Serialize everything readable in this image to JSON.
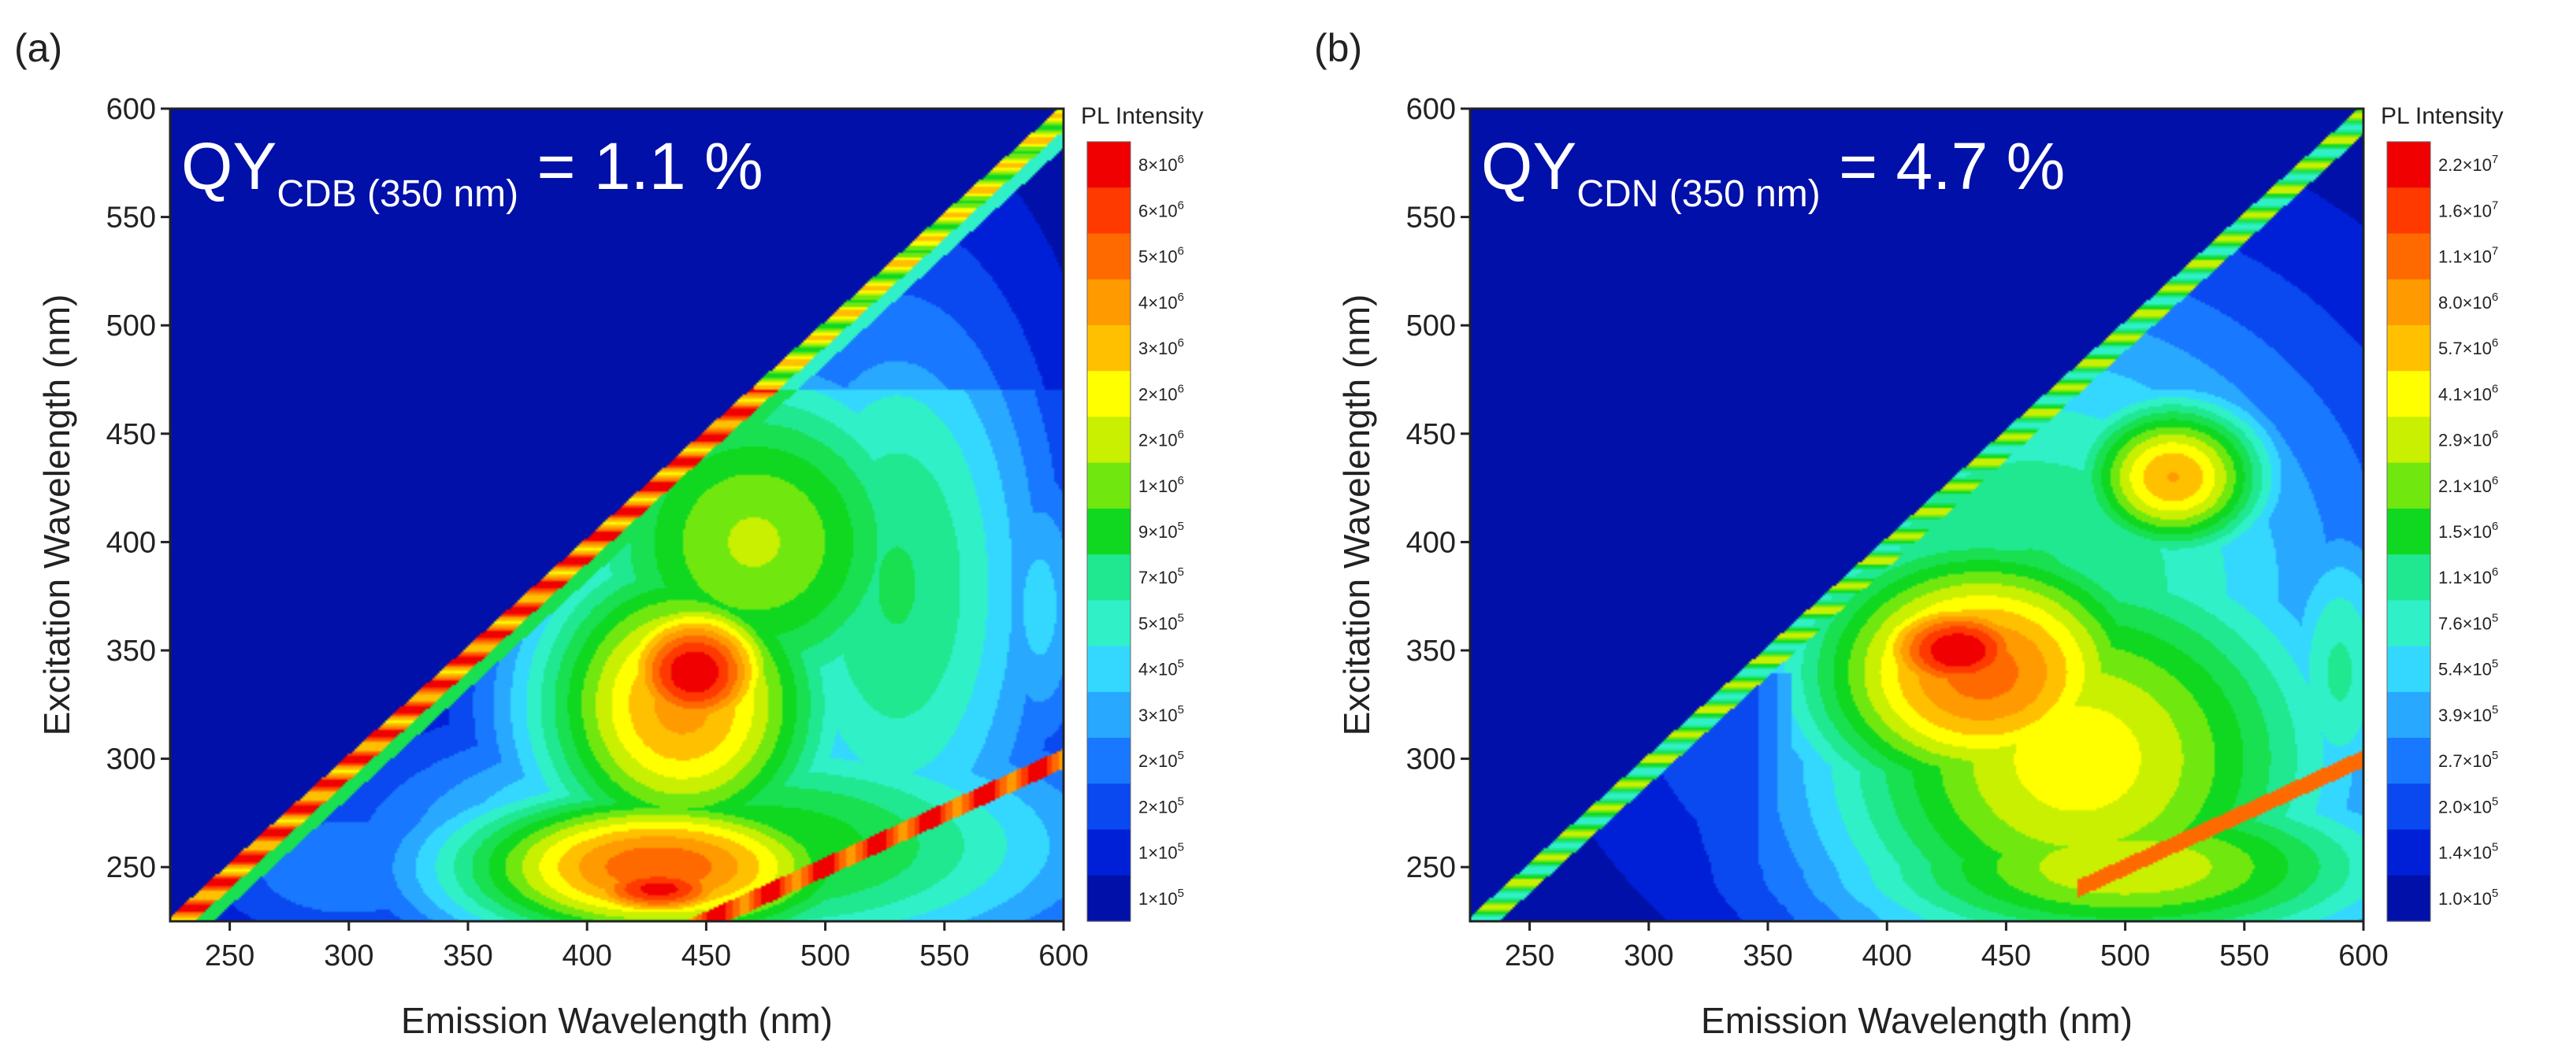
{
  "chart_data": [
    {
      "type": "heatmap",
      "panel_label": "(a)",
      "title": "",
      "annotation": {
        "prefix": "QY",
        "subscript": "CDB (350 nm)",
        "suffix": " = 1.1 %"
      },
      "xlabel": "Emission Wavelength (nm)",
      "ylabel": "Excitation Wavelength (nm)",
      "xlim": [
        225,
        600
      ],
      "ylim": [
        225,
        600
      ],
      "xticks": [
        "250",
        "300",
        "350",
        "400",
        "450",
        "500",
        "550",
        "600"
      ],
      "yticks": [
        "250",
        "300",
        "350",
        "400",
        "450",
        "500",
        "550",
        "600"
      ],
      "colorbar": {
        "title": "PL Intensity",
        "labels": [
          {
            "m": "8",
            "e": "6"
          },
          {
            "m": "6",
            "e": "6"
          },
          {
            "m": "5",
            "e": "6"
          },
          {
            "m": "4",
            "e": "6"
          },
          {
            "m": "3",
            "e": "6"
          },
          {
            "m": "2",
            "e": "6"
          },
          {
            "m": "2",
            "e": "6"
          },
          {
            "m": "1",
            "e": "6"
          },
          {
            "m": "9",
            "e": "5"
          },
          {
            "m": "7",
            "e": "5"
          },
          {
            "m": "5",
            "e": "5"
          },
          {
            "m": "4",
            "e": "5"
          },
          {
            "m": "3",
            "e": "5"
          },
          {
            "m": "2",
            "e": "5"
          },
          {
            "m": "2",
            "e": "5"
          },
          {
            "m": "1",
            "e": "5"
          },
          {
            "m": "1",
            "e": "5"
          }
        ]
      },
      "features": [
        {
          "name": "main emission peak",
          "em": 445,
          "ex": 340,
          "level": 1.0
        },
        {
          "name": "low-excitation band",
          "em": 430,
          "ex": 240,
          "level": 0.97
        },
        {
          "name": "Rayleigh scatter line",
          "relation": "em = ex"
        },
        {
          "name": "second-order scatter line",
          "relation": "em = 2*ex"
        }
      ]
    },
    {
      "type": "heatmap",
      "panel_label": "(b)",
      "title": "",
      "annotation": {
        "prefix": "QY",
        "subscript": "CDN (350 nm)",
        "suffix": " = 4.7 %"
      },
      "xlabel": "Emission Wavelength (nm)",
      "ylabel": "Excitation Wavelength (nm)",
      "xlim": [
        225,
        600
      ],
      "ylim": [
        225,
        600
      ],
      "xticks": [
        "250",
        "300",
        "350",
        "400",
        "450",
        "500",
        "550",
        "600"
      ],
      "yticks": [
        "250",
        "300",
        "350",
        "400",
        "450",
        "500",
        "550",
        "600"
      ],
      "colorbar": {
        "title": "PL Intensity",
        "labels": [
          {
            "m": "2.2",
            "e": "7"
          },
          {
            "m": "1.6",
            "e": "7"
          },
          {
            "m": "1.1",
            "e": "7"
          },
          {
            "m": "8.0",
            "e": "6"
          },
          {
            "m": "5.7",
            "e": "6"
          },
          {
            "m": "4.1",
            "e": "6"
          },
          {
            "m": "2.9",
            "e": "6"
          },
          {
            "m": "2.1",
            "e": "6"
          },
          {
            "m": "1.5",
            "e": "6"
          },
          {
            "m": "1.1",
            "e": "6"
          },
          {
            "m": "7.6",
            "e": "5"
          },
          {
            "m": "5.4",
            "e": "5"
          },
          {
            "m": "3.9",
            "e": "5"
          },
          {
            "m": "2.7",
            "e": "5"
          },
          {
            "m": "2.0",
            "e": "5"
          },
          {
            "m": "1.4",
            "e": "5"
          },
          {
            "m": "1.0",
            "e": "5"
          }
        ]
      },
      "features": [
        {
          "name": "main emission peak",
          "em": 430,
          "ex": 350,
          "level": 1.0
        },
        {
          "name": "upper red-shifted lobe",
          "em": 520,
          "ex": 430,
          "level": 0.8
        },
        {
          "name": "Rayleigh scatter line",
          "relation": "em = ex"
        },
        {
          "name": "second-order scatter dots",
          "relation": "em = 2*ex"
        }
      ]
    }
  ],
  "colors": [
    "#0010a8",
    "#0020d8",
    "#0a48f0",
    "#1878ff",
    "#28a8ff",
    "#34d8ff",
    "#30f0c8",
    "#20e890",
    "#18e050",
    "#10d820",
    "#70e810",
    "#c8f000",
    "#ffff00",
    "#ffc000",
    "#ff9a00",
    "#ff6a00",
    "#ff3a00",
    "#f00000"
  ]
}
